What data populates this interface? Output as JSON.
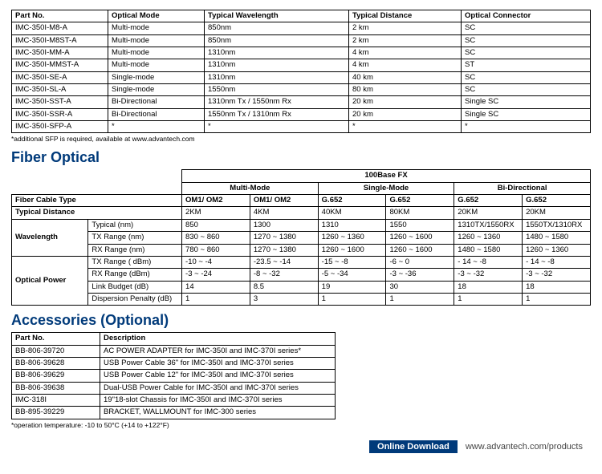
{
  "topTable": {
    "headers": [
      "Part No.",
      "Optical Mode",
      "Typical Wavelength",
      "Typical Distance",
      "Optical Connector"
    ],
    "rows": [
      [
        "IMC-350I-M8-A",
        "Multi-mode",
        "850nm",
        "2 km",
        "SC"
      ],
      [
        "IMC-350I-M8ST-A",
        "Multi-mode",
        "850nm",
        "2 km",
        "SC"
      ],
      [
        "IMC-350I-MM-A",
        "Multi-mode",
        "1310nm",
        "4 km",
        "SC"
      ],
      [
        "IMC-350I-MMST-A",
        "Multi-mode",
        "1310nm",
        "4 km",
        "ST"
      ],
      [
        "IMC-350I-SE-A",
        "Single-mode",
        "1310nm",
        "40 km",
        "SC"
      ],
      [
        "IMC-350I-SL-A",
        "Single-mode",
        "1550nm",
        "80 km",
        "SC"
      ],
      [
        "IMC-350I-SST-A",
        "Bi-Directional",
        "1310nm Tx / 1550nm Rx",
        "20 km",
        " Single SC"
      ],
      [
        "IMC-350I-SSR-A",
        "Bi-Directional",
        "1550nm Tx / 1310nm Rx",
        "20 km",
        " Single SC"
      ],
      [
        "IMC-350I-SFP-A",
        "*",
        "*",
        "*",
        "*"
      ]
    ],
    "footnote": "*additional SFP is required, available at www.advantech.com"
  },
  "fiberOptical": {
    "title": "Fiber Optical",
    "topHeader": "100Base FX",
    "modeHeaders": [
      "Multi-Mode",
      "Single-Mode",
      "Bi-Directional"
    ],
    "leftLabels": {
      "fiberCableType": "Fiber Cable Type",
      "typicalDistance": "Typical Distance",
      "wavelength": "Wavelength",
      "opticalPower": "Optical Power"
    },
    "cableRow": [
      "OM1/ OM2",
      "OM1/ OM2",
      "G.652",
      "G.652",
      "G.652",
      "G.652"
    ],
    "distanceRow": [
      "2KM",
      "4KM",
      "40KM",
      "80KM",
      "20KM",
      "20KM"
    ],
    "wavelengthRows": [
      {
        "label": "Typical (nm)",
        "vals": [
          "850",
          "1300",
          "1310",
          "1550",
          "1310TX/1550RX",
          "1550TX/1310RX"
        ]
      },
      {
        "label": "TX Range (nm)",
        "vals": [
          "830 ~ 860",
          "1270 ~ 1380",
          "1260 ~ 1360",
          "1260 ~ 1600",
          "1260 ~ 1360",
          "1480 ~ 1580"
        ]
      },
      {
        "label": "RX Range (nm)",
        "vals": [
          "780 ~ 860",
          "1270 ~ 1380",
          "1260 ~ 1600",
          "1260 ~ 1600",
          "1480 ~ 1580",
          "1260 ~ 1360"
        ]
      }
    ],
    "powerRows": [
      {
        "label": "TX Range ( dBm)",
        "vals": [
          "-10 ~ -4",
          "-23.5 ~ -14",
          "-15 ~ -8",
          "-6 ~ 0",
          "- 14 ~ -8",
          "- 14 ~ -8"
        ]
      },
      {
        "label": "RX Range (dBm)",
        "vals": [
          "-3 ~ -24",
          "-8 ~ -32",
          "-5 ~ -34",
          "-3 ~ -36",
          "-3 ~ -32",
          "-3 ~ -32"
        ]
      },
      {
        "label": "Link Budget (dB)",
        "vals": [
          "14",
          "8.5",
          "19",
          "30",
          "18",
          "18"
        ]
      },
      {
        "label": "Dispersion Penalty (dB)",
        "vals": [
          "1",
          "3",
          "1",
          "1",
          "1",
          "1"
        ]
      }
    ]
  },
  "accessories": {
    "title": "Accessories (Optional)",
    "headers": [
      "Part No.",
      "Description"
    ],
    "rows": [
      [
        "BB-806-39720",
        "AC POWER ADAPTER for IMC-350I and IMC-370I series*"
      ],
      [
        "BB-806-39628",
        "USB Power Cable 36\" for IMC-350I and IMC-370I series"
      ],
      [
        "BB-806-39629",
        "USB Power Cable 12\" for IMC-350I and IMC-370I series"
      ],
      [
        "BB-806-39638",
        "Dual-USB Power Cable for IMC-350I and IMC-370I series"
      ],
      [
        "IMC-318I",
        "19\"18-slot Chassis for IMC-350I and IMC-370I series"
      ],
      [
        "BB-895-39229",
        "BRACKET, WALLMOUNT for IMC-300 series"
      ]
    ],
    "footnote": "*operation temperature: -10 to 50°C (+14 to +122°F)"
  },
  "footer": {
    "label": "Online Download",
    "url": "www.advantech.com/products"
  }
}
